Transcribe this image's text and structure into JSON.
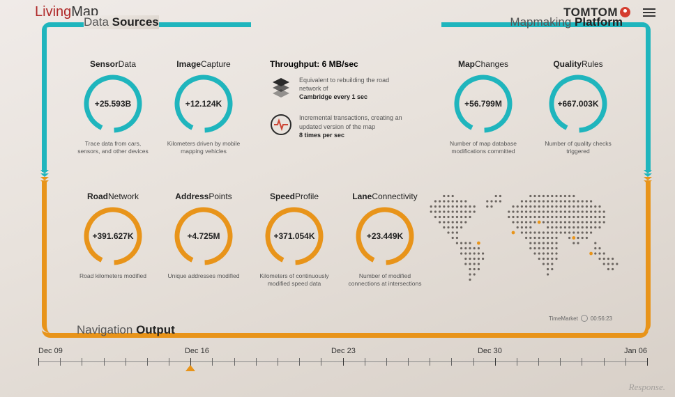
{
  "brand": {
    "part1": "Living",
    "part2": "Map"
  },
  "vendor": "TOMTOM",
  "sections": {
    "data_sources": {
      "thin": "Data",
      "bold": "Sources"
    },
    "mapmaking": {
      "thin": "Mapmaking",
      "bold": "Platform"
    },
    "navigation": {
      "thin": "Navigation",
      "bold": "Output"
    }
  },
  "colors": {
    "teal": "#1fb5bd",
    "orange": "#e8941a",
    "ring_bg": "#dad3cc",
    "text_dark": "#222222",
    "text_muted": "#666666"
  },
  "ring": {
    "radius": 38,
    "stroke_width": 7,
    "gap_deg": 28
  },
  "metrics_top_left": [
    {
      "title_b": "Sensor",
      "title_r": "Data",
      "value": "+25.593B",
      "desc": "Trace data from cars, sensors, and other devices",
      "color": "#1fb5bd"
    },
    {
      "title_b": "Image",
      "title_r": "Capture",
      "value": "+12.124K",
      "desc": "Kilometers driven by mobile mapping vehicles",
      "color": "#1fb5bd"
    }
  ],
  "metrics_top_right": [
    {
      "title_b": "Map",
      "title_r": "Changes",
      "value": "+56.799M",
      "desc": "Number of map database modifications committed",
      "color": "#1fb5bd"
    },
    {
      "title_b": "Quality",
      "title_r": "Rules",
      "value": "+667.003K",
      "desc": "Number of quality checks triggered",
      "color": "#1fb5bd"
    }
  ],
  "metrics_bottom": [
    {
      "title_b": "Road",
      "title_r": "Network",
      "value": "+391.627K",
      "desc": "Road kilometers modified",
      "color": "#e8941a"
    },
    {
      "title_b": "Address",
      "title_r": "Points",
      "value": "+4.725M",
      "desc": "Unique addresses modified",
      "color": "#e8941a"
    },
    {
      "title_b": "Speed",
      "title_r": "Profile",
      "value": "+371.054K",
      "desc": "Kilometers of continuously modified speed data",
      "color": "#e8941a"
    },
    {
      "title_b": "Lane",
      "title_r": "Connectivity",
      "value": "+23.449K",
      "desc": "Number of modified connections at intersections",
      "color": "#e8941a"
    }
  ],
  "throughput": {
    "title": "Throughput: 6 MB/sec",
    "item1_pre": "Equivalent to rebuilding the road network of",
    "item1_bold": "Cambridge every 1 sec",
    "item2_pre": "Incremental transactions, creating an updated version of the map",
    "item2_bold": "8 times per sec"
  },
  "timemarket": {
    "label": "TimeMarket",
    "time": "00:56:23"
  },
  "timeline": {
    "labels": [
      "Dec 09",
      "Dec 16",
      "Dec 23",
      "Dec 30",
      "Jan 06"
    ],
    "marker_pct": 25,
    "ticks_per_segment": 7
  },
  "watermark": "Response."
}
